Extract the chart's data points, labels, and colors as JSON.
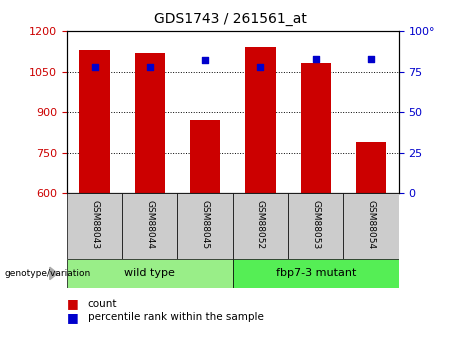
{
  "title": "GDS1743 / 261561_at",
  "samples": [
    "GSM88043",
    "GSM88044",
    "GSM88045",
    "GSM88052",
    "GSM88053",
    "GSM88054"
  ],
  "counts": [
    1130,
    1120,
    870,
    1140,
    1080,
    790
  ],
  "percentiles": [
    78,
    78,
    82,
    78,
    83,
    83
  ],
  "ylim_left": [
    600,
    1200
  ],
  "ylim_right": [
    0,
    100
  ],
  "yticks_left": [
    600,
    750,
    900,
    1050,
    1200
  ],
  "yticks_right": [
    0,
    25,
    50,
    75,
    100
  ],
  "bar_color": "#cc0000",
  "dot_color": "#0000cc",
  "groups": [
    {
      "label": "wild type",
      "indices": [
        0,
        1,
        2
      ],
      "color": "#99ee88"
    },
    {
      "label": "fbp7-3 mutant",
      "indices": [
        3,
        4,
        5
      ],
      "color": "#55ee55"
    }
  ],
  "group_label": "genotype/variation",
  "legend_count": "count",
  "legend_percentile": "percentile rank within the sample",
  "bar_width": 0.55,
  "tick_label_color_left": "#cc0000",
  "tick_label_color_right": "#0000cc"
}
